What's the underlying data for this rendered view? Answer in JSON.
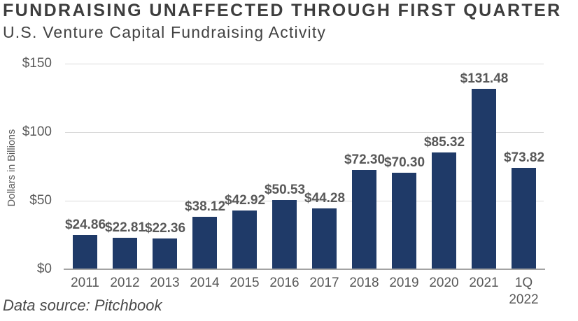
{
  "header": {
    "title": "FUNDRAISING UNAFFECTED THROUGH FIRST QUARTER",
    "subtitle": "U.S. Venture Capital Fundraising Activity"
  },
  "footer": {
    "data_source": "Data source: Pitchbook"
  },
  "colors": {
    "bar": "#1f3a68",
    "label_gray": "#595959",
    "gridline": "#d9d9d9",
    "axis_line": "#a3a3a3",
    "title_text": "#3d3d3d"
  },
  "chart_data": {
    "type": "bar",
    "title": "FUNDRAISING UNAFFECTED THROUGH FIRST QUARTER",
    "subtitle": "U.S. Venture Capital Fundraising Activity",
    "xlabel": "",
    "ylabel": "Dollars in Billions",
    "ylim": [
      0,
      150
    ],
    "grid": "horizontal",
    "legend": "none",
    "categories": [
      "2011",
      "2012",
      "2013",
      "2014",
      "2015",
      "2016",
      "2017",
      "2018",
      "2019",
      "2020",
      "2021",
      "1Q\n2022"
    ],
    "values": [
      24.86,
      22.81,
      22.36,
      38.12,
      42.92,
      50.53,
      44.28,
      72.3,
      70.3,
      85.32,
      131.48,
      73.82
    ],
    "value_labels": [
      "$24.86",
      "$22.81",
      "$22.36",
      "$38.12",
      "$42.92",
      "$50.53",
      "$44.28",
      "$72.30",
      "$70.30",
      "$85.32",
      "$131.48",
      "$73.82"
    ],
    "yticks": [
      {
        "value": 150,
        "label": "$150"
      },
      {
        "value": 100,
        "label": "$100"
      },
      {
        "value": 50,
        "label": "$50"
      },
      {
        "value": 0,
        "label": "$0"
      }
    ]
  }
}
